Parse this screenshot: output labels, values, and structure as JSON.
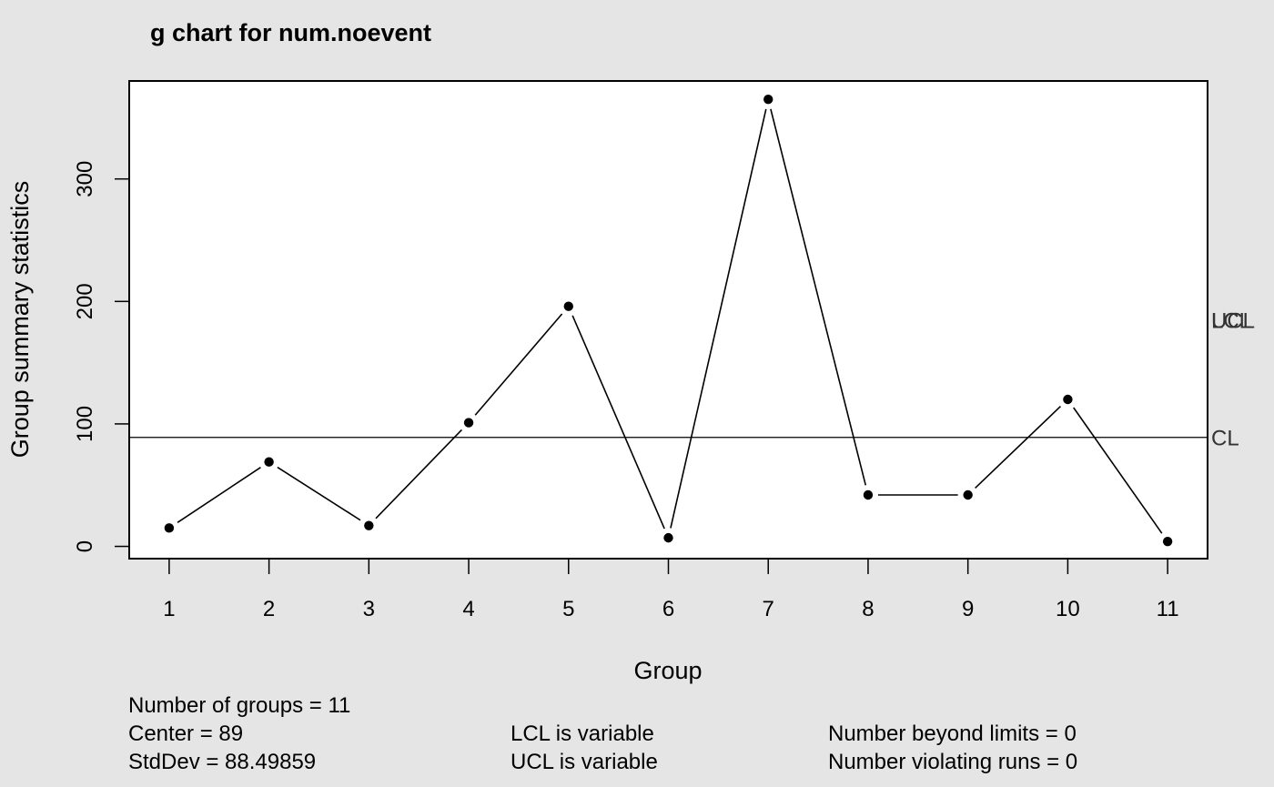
{
  "chart_data": {
    "type": "line",
    "title": "g chart for num.noevent",
    "xlabel": "Group",
    "ylabel": "Group summary statistics",
    "x": [
      1,
      2,
      3,
      4,
      5,
      6,
      7,
      8,
      9,
      10,
      11
    ],
    "x_tick_labels": [
      "1",
      "2",
      "3",
      "4",
      "5",
      "6",
      "7",
      "8",
      "9",
      "10",
      "11"
    ],
    "series": [
      {
        "values": [
          15,
          69,
          17,
          101,
          196,
          7,
          365,
          42,
          42,
          120,
          4
        ]
      }
    ],
    "y_ticks": [
      0,
      100,
      200,
      300
    ],
    "y_tick_labels": [
      "0",
      "100",
      "200",
      "300"
    ],
    "ylim": [
      -10,
      380
    ],
    "xlim": [
      0.6,
      11.4
    ],
    "center_line": {
      "value": 89,
      "label": "CL"
    },
    "limit_labels": {
      "ucl": "UCL",
      "lcl": "LCL",
      "value": 185
    },
    "grid": false,
    "legend": "none",
    "colors": {
      "background": "#e5e5e5",
      "plot": "#ffffff",
      "line": "#000000",
      "limit_label": "#333333"
    }
  },
  "stats": {
    "num_groups": "Number of groups = 11",
    "center": "Center = 89",
    "stddev": "StdDev = 88.49859",
    "lcl": "LCL is variable",
    "ucl": "UCL is variable",
    "beyond": "Number beyond limits = 0",
    "violating": "Number violating runs = 0"
  }
}
